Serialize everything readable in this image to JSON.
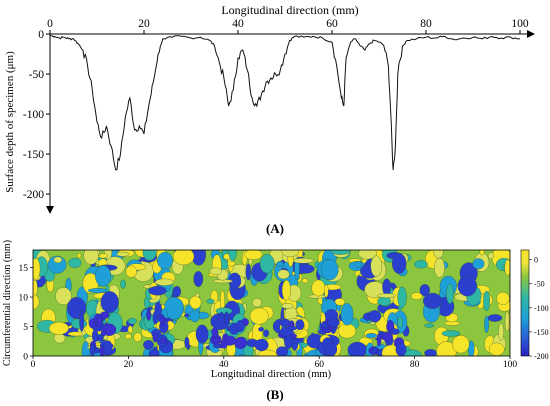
{
  "colors": {
    "line": "#111111",
    "contour_base": "#8cc63f",
    "contour_low": "#2b3fcf",
    "contour_mid": "#1f9fd8",
    "contour_high": "#f6e42a"
  },
  "chart_data": [
    {
      "panel_label": "(A)",
      "type": "line",
      "title": "",
      "xlabel": "Longitudinal direction (mm)",
      "ylabel": "Surface depth of specimen (μm)",
      "x_position": "top",
      "xlim": [
        0,
        100
      ],
      "ylim": [
        -210,
        0
      ],
      "xticks": [
        "0",
        "20",
        "40",
        "60",
        "80",
        "100"
      ],
      "yticks": [
        "0",
        "-50",
        "-100",
        "-150",
        "-200"
      ],
      "grid": false,
      "series": [
        {
          "x": [
            0,
            1,
            2,
            3,
            4,
            5,
            6,
            7,
            8,
            9,
            10,
            11,
            12,
            13,
            14,
            15,
            16,
            17,
            18,
            19,
            20,
            21,
            22,
            23,
            24,
            26,
            28,
            30,
            32,
            34,
            35,
            36,
            37,
            38,
            39,
            40,
            41,
            42,
            43,
            44,
            45,
            46,
            47,
            48,
            49,
            50,
            51,
            52,
            54,
            56,
            58,
            60,
            61,
            62,
            62.5,
            63,
            64,
            65,
            66,
            67,
            68,
            69,
            70,
            71,
            72,
            72.5,
            73,
            73.5,
            74,
            75,
            76,
            78,
            80,
            82,
            84,
            86,
            88,
            90,
            92,
            94,
            96,
            98,
            100
          ],
          "y": [
            -2,
            -3,
            -5,
            -4,
            -6,
            -6,
            -12,
            -20,
            -40,
            -70,
            -110,
            -130,
            -115,
            -140,
            -170,
            -150,
            -105,
            -80,
            -120,
            -115,
            -125,
            -90,
            -60,
            -25,
            -6,
            -4,
            -3,
            -5,
            -4,
            -8,
            -15,
            -35,
            -55,
            -90,
            -70,
            -30,
            -20,
            -45,
            -80,
            -90,
            -75,
            -60,
            -55,
            -50,
            -45,
            -25,
            -8,
            -3,
            -4,
            -3,
            -5,
            -10,
            -40,
            -80,
            -90,
            -30,
            -10,
            -6,
            -15,
            -20,
            -12,
            -8,
            -10,
            -14,
            -40,
            -100,
            -170,
            -140,
            -50,
            -15,
            -8,
            -6,
            -4,
            -5,
            -3,
            -7,
            -5,
            -4,
            -6,
            -3,
            -5,
            -4,
            -6
          ]
        }
      ]
    },
    {
      "panel_label": "(B)",
      "type": "heatmap",
      "title": "",
      "xlabel": "Longitudinal direction (mm)",
      "ylabel": "Circumferential direction (mm)",
      "xlim": [
        0,
        100
      ],
      "ylim": [
        0,
        18
      ],
      "xticks": [
        "0",
        "20",
        "40",
        "60",
        "80",
        "100"
      ],
      "yticks": [
        "0",
        "5",
        "10",
        "15"
      ],
      "colorbar": {
        "ticks": [
          "0",
          "-50",
          "-100",
          "-150",
          "-200"
        ],
        "range": [
          -200,
          20
        ]
      },
      "grid": false
    }
  ]
}
